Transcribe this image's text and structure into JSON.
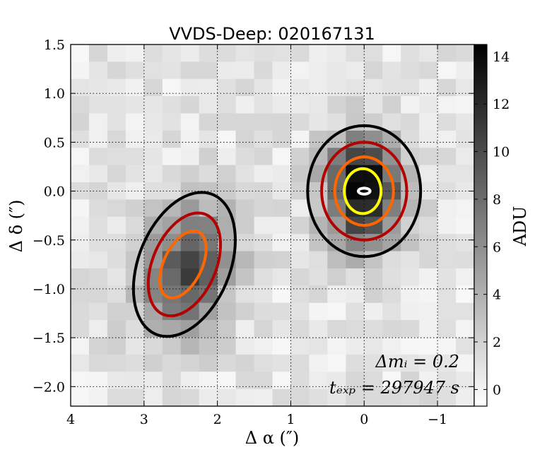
{
  "chart_data": {
    "type": "heatmap",
    "title": "VVDS-Deep: 020167131",
    "xlabel": "Δ α  (″)",
    "ylabel": "Δ δ  (″)",
    "xlim": [
      4.0,
      -1.5
    ],
    "ylim": [
      -2.2,
      1.5
    ],
    "grid": true,
    "x_ticks": [
      4,
      3,
      2,
      1,
      0,
      -1
    ],
    "x_tick_labels": [
      "4",
      "3",
      "2",
      "1",
      "0",
      "−1"
    ],
    "y_ticks": [
      1.5,
      1.0,
      0.5,
      0.0,
      -0.5,
      -1.0,
      -1.5,
      -2.0
    ],
    "y_tick_labels": [
      "1.5",
      "1.0",
      "0.5",
      "0.0",
      "−0.5",
      "−1.0",
      "−1.5",
      "−2.0"
    ],
    "colorbar": {
      "label": "ADU",
      "range": [
        -0.7,
        14.5
      ],
      "ticks": [
        0,
        2,
        4,
        6,
        8,
        10,
        12,
        14
      ],
      "tick_labels": [
        "0",
        "2",
        "4",
        "6",
        "8",
        "10",
        "12",
        "14"
      ],
      "colormap": "gray_r"
    },
    "sources": [
      {
        "name": "primary",
        "x": 0.0,
        "y": 0.0,
        "peak_adu": 14.2,
        "sigma_x": 0.35,
        "sigma_y": 0.38,
        "angle_deg": 0
      },
      {
        "name": "companion",
        "x": 2.4,
        "y": -0.8,
        "peak_adu": 9.5,
        "sigma_x": 0.5,
        "sigma_y": 0.38,
        "angle_deg": -50
      }
    ],
    "contours": [
      {
        "source": "primary",
        "color": "#000000",
        "cx": 0.0,
        "cy": 0.0,
        "rx": 0.77,
        "ry": 0.67,
        "angle_deg": 0
      },
      {
        "source": "primary",
        "color": "#b30000",
        "cx": 0.0,
        "cy": 0.0,
        "rx": 0.58,
        "ry": 0.5,
        "angle_deg": 0
      },
      {
        "source": "primary",
        "color": "#ff6600",
        "cx": 0.0,
        "cy": 0.0,
        "rx": 0.4,
        "ry": 0.35,
        "angle_deg": 0
      },
      {
        "source": "primary",
        "color": "#ffff00",
        "cx": 0.02,
        "cy": 0.0,
        "rx": 0.25,
        "ry": 0.23,
        "angle_deg": 0
      },
      {
        "source": "primary",
        "color": "#ffffff",
        "cx": 0.0,
        "cy": 0.0,
        "rx": 0.08,
        "ry": 0.03,
        "angle_deg": 0
      },
      {
        "source": "companion",
        "color": "#000000",
        "cx": 2.45,
        "cy": -0.75,
        "rx": 0.83,
        "ry": 0.58,
        "angle_deg": -50
      },
      {
        "source": "companion",
        "color": "#b30000",
        "cx": 2.45,
        "cy": -0.75,
        "rx": 0.6,
        "ry": 0.4,
        "angle_deg": -50
      },
      {
        "source": "companion",
        "color": "#ff6600",
        "cx": 2.47,
        "cy": -0.75,
        "rx": 0.4,
        "ry": 0.24,
        "angle_deg": -50
      }
    ],
    "annotations": [
      {
        "id": "dmag",
        "text": "Δmᵢ = 0.2"
      },
      {
        "id": "texp",
        "text": "tₑₓₚ = 297947 s"
      }
    ]
  }
}
